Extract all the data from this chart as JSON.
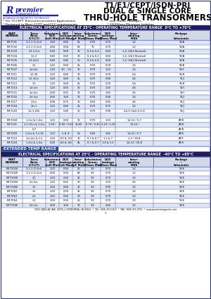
{
  "title_line1": "T1/E1/CEPT/ISDN-PRI",
  "title_line2": "DUAL & SINGLE CORE",
  "title_line3": "THRU-HOLE TRANSORMERS",
  "bullets_left": [
    "* For T1/CEPT Telecommunications Applications",
    "* Designed to Meet CCITT and FCC requirements",
    "* Designed for Majority of Line Interface Transceiver Chips"
  ],
  "bullets_right": [
    "* Low Profile Packages",
    "* 1500Vrms Minimum Isolation",
    "* Single or Dual Core Package"
  ],
  "section1_title": "ELECTRICAL SPECIFICATIONS AT 25°C - OPERATING TEMPERATURE RANGE  0°C TO +70°C",
  "col_headers_line1": [
    "PART",
    "Turns",
    "Inductance",
    "DCR Leakage",
    "Inter-winding",
    "Inductance",
    "DCR Leakage",
    "Interwinding",
    "Package"
  ],
  "col_headers_line2": [
    "NUMBER",
    "Ratio",
    "DCR",
    "To",
    "Capac.",
    "Comm.",
    "DCR",
    "PINS",
    "Schematic"
  ],
  "col_headers_line3": [
    "",
    "(CT:CT)",
    "(mH Min)",
    "(uH Max)",
    "(pF Max)",
    "(Ohms Max)",
    "(Ohms Max)",
    "",
    ""
  ],
  "table1_data": [
    [
      "PM-T131",
      "1:1:1 (1:2ct)",
      "1.20",
      "0.50",
      "25",
      "0.70",
      "0.70",
      "1-2",
      "T6/A"
    ],
    [
      "PM-T132",
      "1:1:1 (1:2ct)",
      "2.00",
      "0.50",
      "63",
      "70",
      "0.70",
      "1-2",
      "T6/A"
    ],
    [
      "PM-T133",
      "1:1:1.5ct",
      "0.30",
      "0.60",
      "30",
      "0.4 & 0.4",
      "0.60",
      "1-4, (2&3 Shorted)",
      "T6/A"
    ],
    [
      "PM-T134",
      "1:1.2",
      "0.60",
      "0.60",
      "30",
      "0.4 & 0.4",
      "0.60",
      "1-4, (2&3 Shorted)",
      "T6/A"
    ],
    [
      "PM-T135",
      "1:1.2ct2",
      "0.60",
      "0.40",
      "30",
      "0.4 & 0.4",
      "0.60",
      "1-4, (2&3 Shorted)",
      "T6/A"
    ],
    [
      "PM-T106",
      "1:1",
      "1.20",
      "0.50",
      "25",
      "0.70",
      "0.70",
      "1-5",
      "T6/B"
    ],
    [
      "PM-T107",
      "1ct:2ct",
      "1.20",
      ".30 - .55",
      "30",
      "0.70",
      "1.20",
      "1-5",
      "T6/C"
    ],
    [
      "PM-T111",
      "1:1.36",
      "1.20",
      "0.60",
      "30",
      "0.70",
      "0.70",
      "5-6",
      "T6/H"
    ],
    [
      "PM-T112",
      "1:1.15ct",
      "1.50",
      "0.60",
      "35",
      "0.70",
      "0.90",
      "2-6",
      "T6/J"
    ],
    [
      "PM-T113",
      "1:1",
      "1.20",
      "0.50",
      "25",
      "0.70",
      "0.70",
      "5-6",
      "T6/H"
    ],
    [
      "PM-T114",
      "1ct:2ct",
      "1.20",
      "0.55",
      "30",
      "0.70",
      "1.10",
      "2-6",
      "T6/I"
    ],
    [
      "PM-T115",
      "1ct:2ct",
      "2.00",
      "0.55",
      "32",
      "0.70",
      "1.40",
      "2-5",
      "T6/I"
    ],
    [
      "PM-T116",
      "2ct:1ct",
      "2.00",
      "1.00",
      "30",
      "0.70",
      "0.40",
      "1-5",
      "T6/J"
    ],
    [
      "PM-T117",
      "1:1ct",
      "0.06",
      "0.75",
      "30",
      "0.60",
      "0.65",
      "2-6",
      "T6/J"
    ],
    [
      "PM-T118",
      "1ct:1",
      "1.20",
      "0.60",
      "25",
      "0.70",
      "0.75",
      "1-5",
      "T6/J"
    ],
    [
      "PM-T120",
      "1:1:1.265",
      "1.50",
      "0.40",
      "30",
      "0.70",
      "0.90",
      "2-4,(1:1&5-6:3-5)",
      "T6/J"
    ],
    [
      "",
      "",
      "",
      "",
      "",
      "",
      "",
      "",
      ""
    ],
    [
      "PM-T158",
      "1:2ct & 1:2ct",
      "1.20",
      "0.50",
      "35",
      "0.70",
      "1.10",
      "14-12 / 5-7",
      "AT/D"
    ],
    [
      "PM-T121",
      "1:1.15ct & 1:2ct",
      "1.50 /",
      "0.60 / 0.55",
      "35/40",
      "0.70 / 0.20",
      "1:10 / 1:20",
      "14-12 /",
      "AT/D"
    ],
    [
      "",
      "5-7",
      "",
      "",
      "",
      "",
      "",
      "",
      "AT/D"
    ],
    [
      "PM-T109",
      "1:2ct & 1:1.36",
      "1.20",
      "5-8, 8",
      "35",
      "0.60",
      "1.60",
      "14-12 / 5-7",
      "AT/S"
    ],
    [
      "PM-T110",
      "1ct:2ct & 1:1",
      "1.20",
      ".55 & .50",
      "30",
      "0.7 & 0.7",
      "1.1 & 7",
      "1-2 / 18-8",
      "AT/F"
    ],
    [
      "PM-T118",
      "1:2ct & 1:2ct",
      "2.00",
      ".60 & .60",
      "45",
      "0.7 & 0.7",
      "1.0 & 1.0",
      "14-12 / 10-8",
      "AT/S"
    ]
  ],
  "section2_title": "EXTENDED TEMP RANGE",
  "section3_title": "ELECTRICAL SPECIFICATIONS AT 25°C - OPERATING TEMPERATURE RANGE  -40°C TO +85°C",
  "table2_data": [
    [
      "PM-T101E",
      "1:1:1 (1:2ct)",
      "1.20",
      "0.50",
      "25",
      "3.0",
      "0.70",
      "1-2",
      "T6/6"
    ],
    [
      "PM-T102E",
      "1:1:1 (1:2ct)",
      "2.00",
      "0.50",
      "63",
      "3.0",
      "0.70",
      "1-2",
      "T6/6"
    ],
    [
      "PM-T103E",
      "1:1",
      "1.20",
      "0.50",
      "25",
      "3.0",
      "0.70",
      "1-5",
      "T6/6"
    ],
    [
      "PM-T105E",
      "1:1:2ct",
      "1.20",
      "0.55",
      "30",
      "3.0",
      "1.10",
      "2-5",
      "T6/6"
    ],
    [
      "PM-T106E",
      "1:1",
      "1.50",
      "0.60",
      "35",
      "3.0",
      "0.90",
      "1-5",
      "T6/6"
    ],
    [
      "PM-T062",
      "1:1",
      "1.20",
      "0.50",
      "25",
      "3.0",
      "0.70",
      "1-5",
      "T6/6"
    ],
    [
      "PM-T063",
      "2:1",
      "1.50",
      "0.60",
      "30",
      "3.0",
      "0.70",
      "1-5",
      "T6/6"
    ],
    [
      "PM-T064",
      "1:1",
      "1.50",
      "0.50",
      "25",
      "3.0",
      "0.70",
      "1-5",
      "T6/6"
    ],
    [
      "PM-T116E",
      "2ct:1ct",
      "2.00",
      "1.00",
      "30",
      "3.0",
      "0.65",
      "1-5",
      "T6/6"
    ]
  ],
  "footer": "3505 CADILLAC AVE. SUITE J, COSTA MESA, CA 92626  *  TEL: (949) 472-6915  *  FAX: (949) 472-0752  *  www.premiermagneties.com",
  "bg_color": "#ffffff",
  "dark_header_bg": "#1e1e5c",
  "table_header_bg": "#d0d8ea",
  "row_alt_color": "#dde8f7",
  "row_normal_color": "#ffffff",
  "ext_section_bg": "#2a4a8a",
  "border_color": "#6666aa",
  "cell_border": "#8888bb"
}
